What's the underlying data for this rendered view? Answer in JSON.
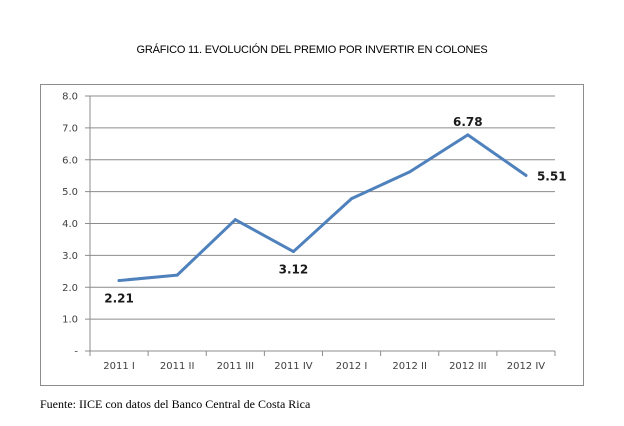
{
  "chart_data": {
    "type": "line",
    "title": "GRÁFICO 11. EVOLUCIÓN DEL PREMIO POR INVERTIR EN COLONES",
    "categories": [
      "2011 I",
      "2011 II",
      "2011 III",
      "2011 IV",
      "2012 I",
      "2012 II",
      "2012 III",
      "2012 IV"
    ],
    "series": [
      {
        "values": [
          2.21,
          2.38,
          4.12,
          3.12,
          4.78,
          5.62,
          6.78,
          5.51
        ],
        "color": "#4f81bd"
      }
    ],
    "data_labels": [
      {
        "index": 0,
        "text": "2.21",
        "position": "below"
      },
      {
        "index": 3,
        "text": "3.12",
        "position": "below"
      },
      {
        "index": 6,
        "text": "6.78",
        "position": "above"
      },
      {
        "index": 7,
        "text": "5.51",
        "position": "right"
      }
    ],
    "y_ticks": [
      "-",
      "1.0",
      "2.0",
      "3.0",
      "4.0",
      "5.0",
      "6.0",
      "7.0",
      "8.0"
    ],
    "ylim": [
      0,
      8
    ],
    "grid": true,
    "xlabel": "",
    "ylabel": ""
  },
  "source_text": "Fuente: IICE con datos del Banco Central de Costa Rica"
}
